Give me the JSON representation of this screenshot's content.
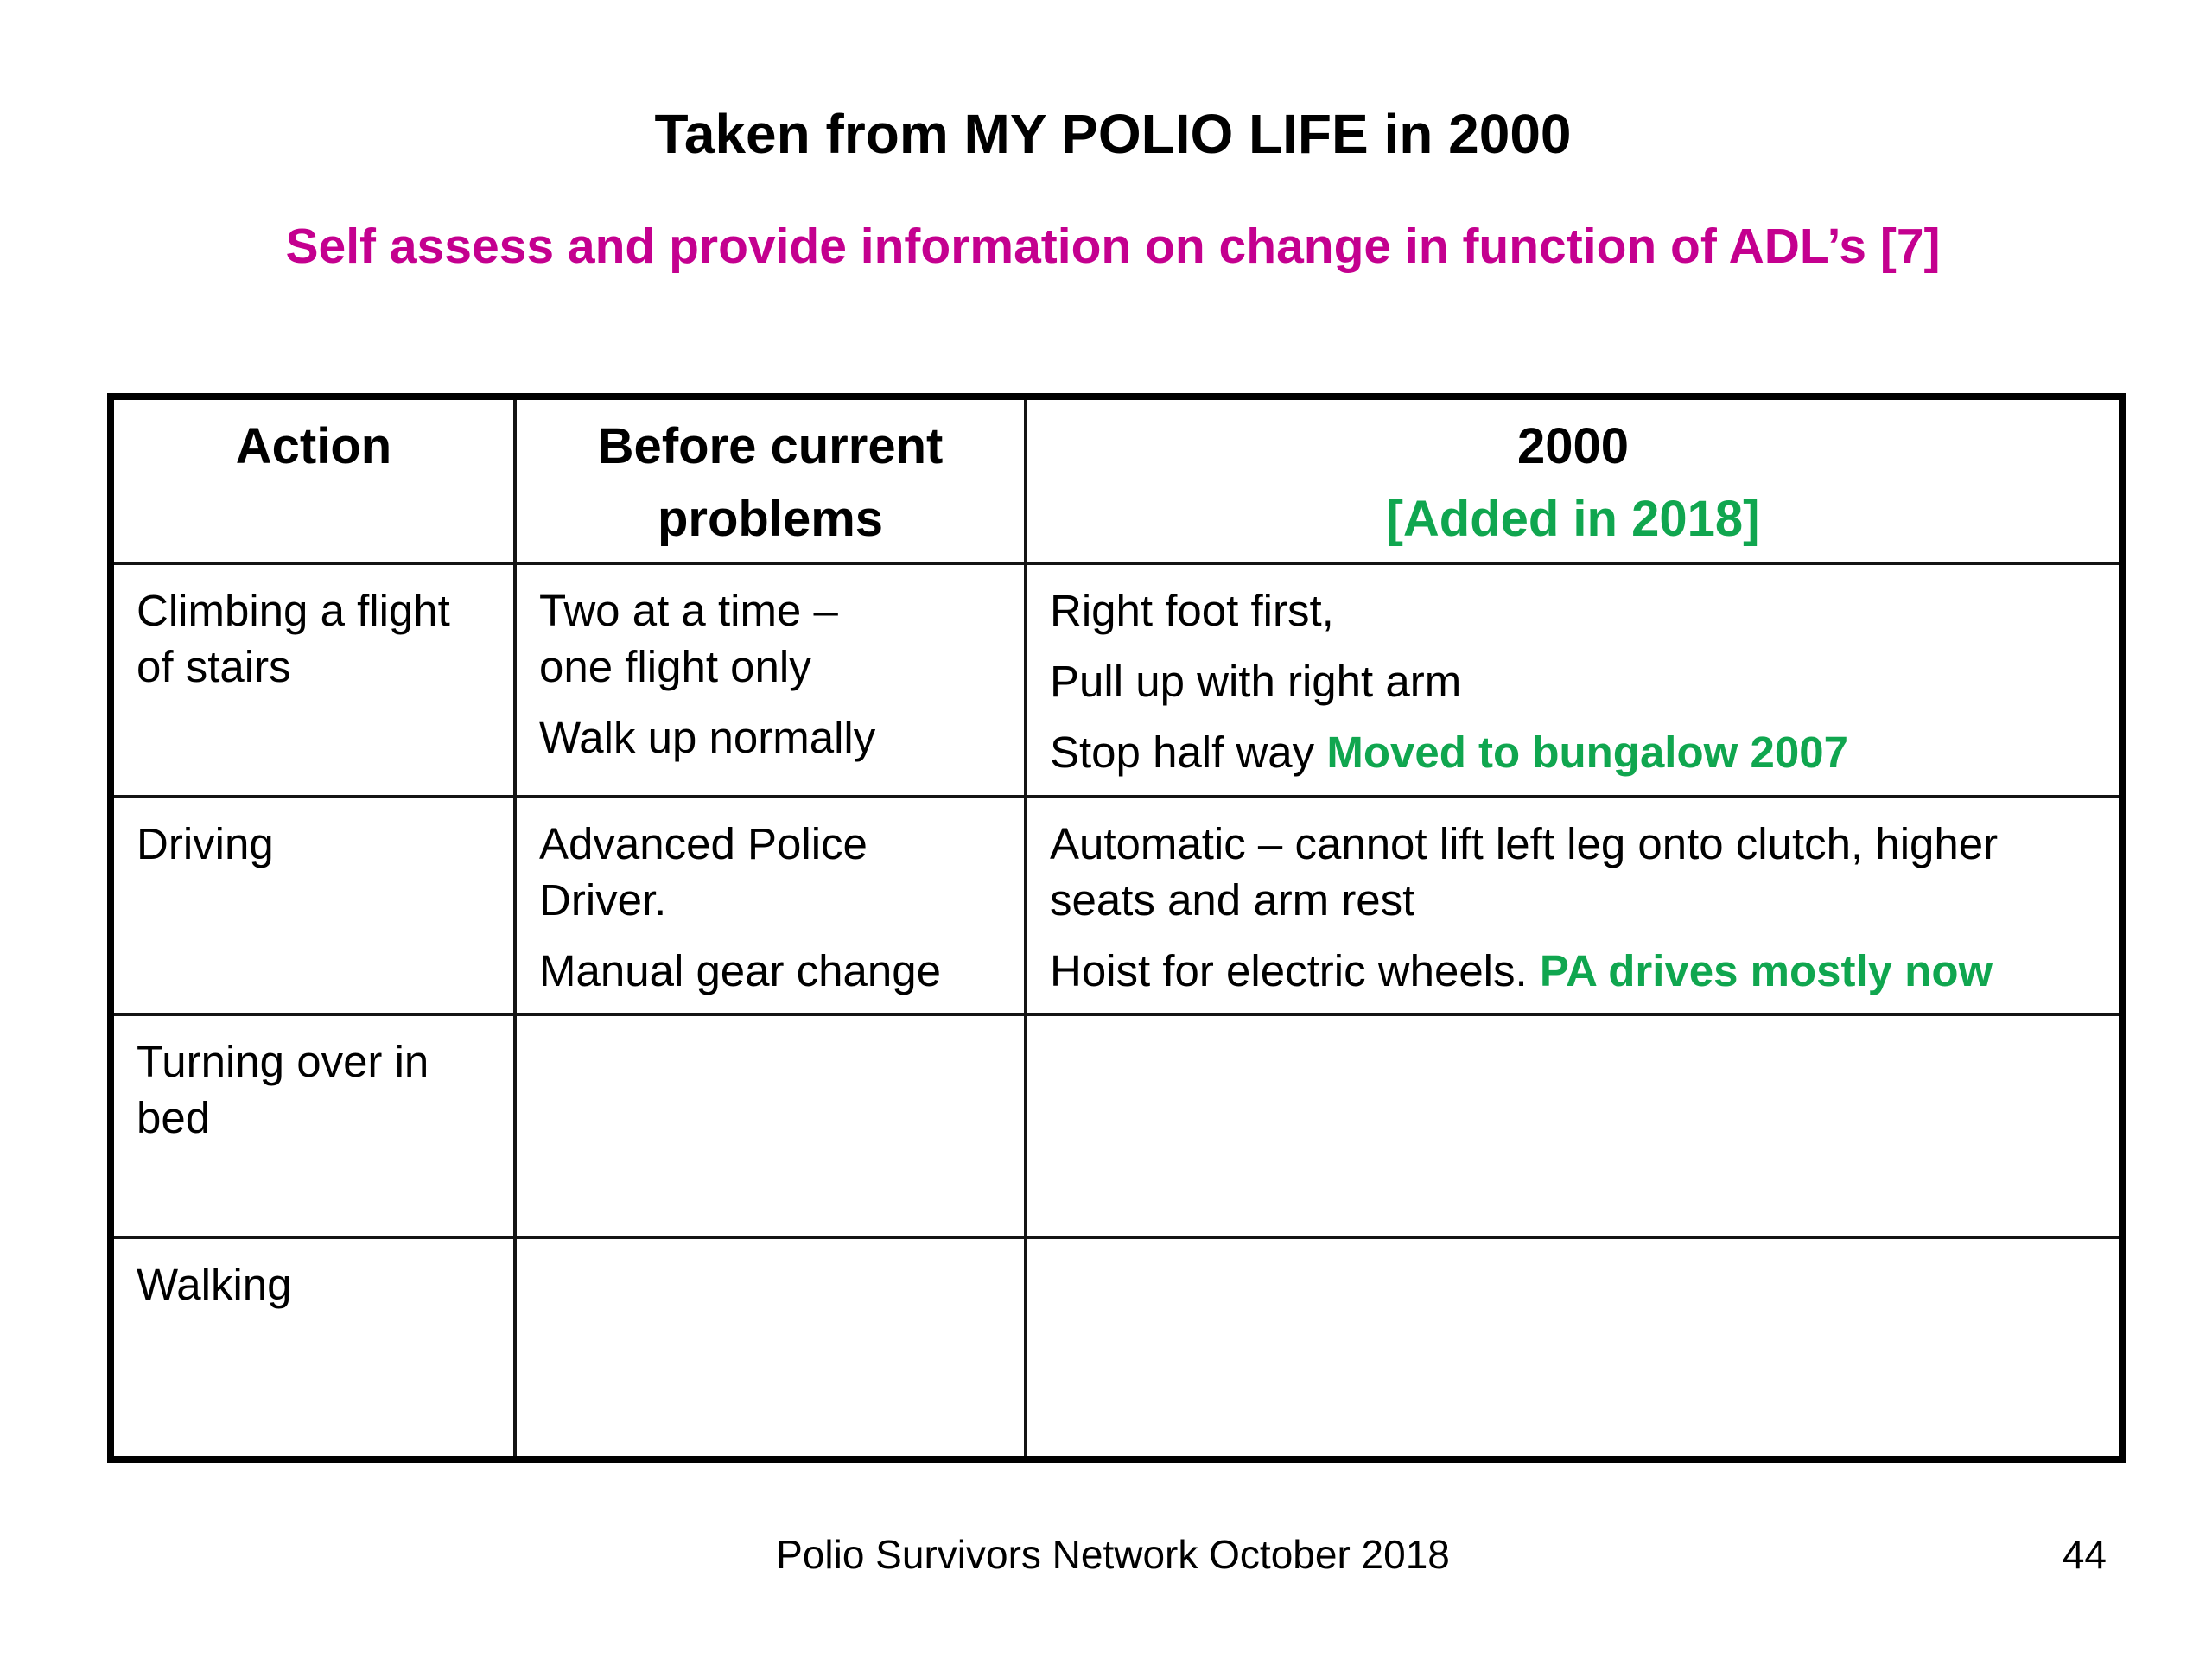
{
  "slide": {
    "title": "Taken from MY POLIO LIFE in 2000",
    "subtitle": "Self assess and provide information on change in function of ADL’s [7]",
    "footer": {
      "text": "Polio Survivors Network October 2018",
      "page_number": "44"
    },
    "colors": {
      "magenta": "#C4008F",
      "green": "#10A64F",
      "text": "#000000"
    }
  },
  "table": {
    "headers": [
      {
        "label": "Action"
      },
      {
        "label": "Before current problems"
      },
      {
        "label": "2000",
        "sub_label": "[Added in 2018]"
      }
    ],
    "rows": [
      {
        "action": "Climbing a flight of stairs",
        "before_paras": [
          {
            "text": "Two at a time –\none flight only"
          },
          {
            "text": "Walk up normally"
          }
        ],
        "y2000_paras": [
          {
            "text": "Right foot first,"
          },
          {
            "text": "Pull up with right arm"
          },
          {
            "text": "Stop half way ",
            "added": "Moved to bungalow 2007"
          }
        ]
      },
      {
        "action": "Driving",
        "before_paras": [
          {
            "text": "Advanced Police Driver."
          },
          {
            "text": "Manual gear change"
          }
        ],
        "y2000_paras": [
          {
            "text": "Automatic – cannot lift left leg onto clutch, higher seats and arm rest"
          },
          {
            "text": "Hoist for electric wheels. ",
            "added": "PA drives mostly now"
          }
        ]
      },
      {
        "action": "Turning over in bed",
        "before_paras": [],
        "y2000_paras": []
      },
      {
        "action": "Walking",
        "before_paras": [],
        "y2000_paras": []
      }
    ]
  }
}
